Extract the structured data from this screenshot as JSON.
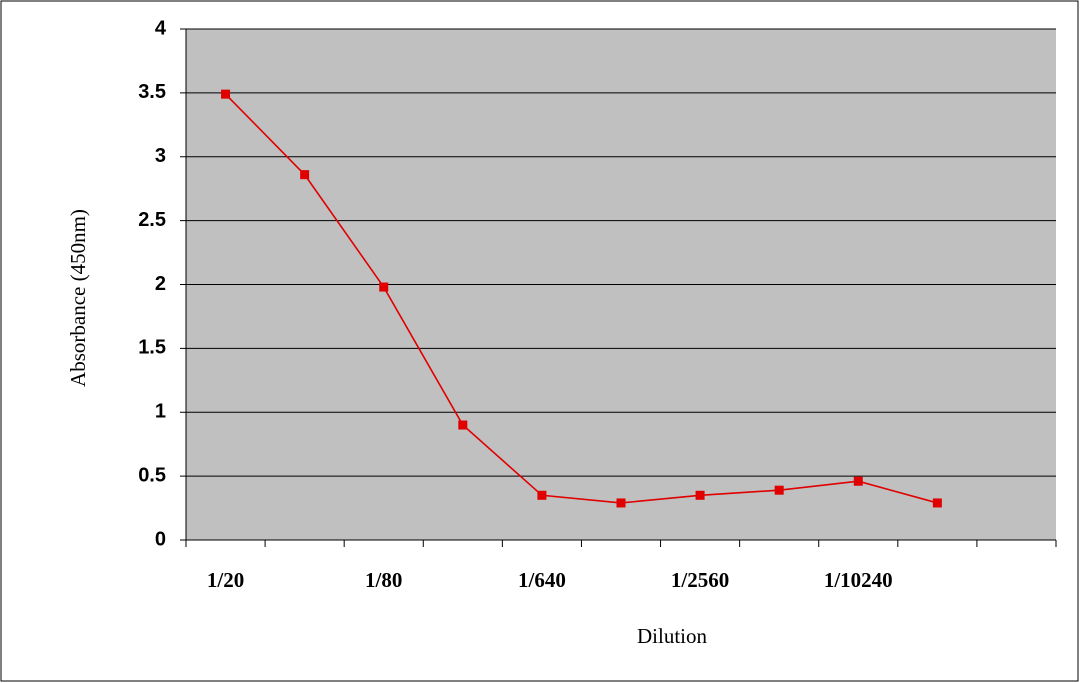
{
  "chart_data": {
    "type": "line",
    "xlabel": "Dilution",
    "ylabel": "Absorbance (450nm)",
    "categories": [
      "1/20",
      null,
      "1/80",
      null,
      "1/640",
      null,
      "1/2560",
      null,
      "1/10240",
      null,
      null
    ],
    "series": [
      {
        "color": "#e00000",
        "values": [
          3.49,
          2.86,
          1.98,
          0.9,
          0.35,
          0.29,
          0.35,
          0.39,
          0.46,
          0.29,
          null
        ]
      }
    ],
    "ylim": [
      0,
      4
    ],
    "yticks": [
      0,
      0.5,
      1,
      1.5,
      2,
      2.5,
      3,
      3.5,
      4
    ],
    "grid": true
  }
}
